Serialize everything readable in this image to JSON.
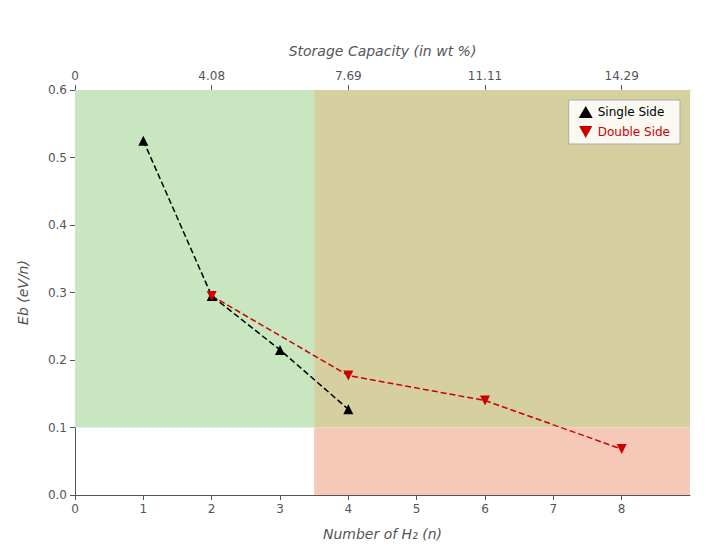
{
  "chart_data": {
    "type": "line",
    "xlabel": "Number of H₂ (n)",
    "ylabel": "Eb (eV/n)",
    "x2label": "Storage Capacity (in wt %)",
    "series": [
      {
        "name": "Single Side",
        "color": "black",
        "x": [
          1,
          2,
          3,
          4
        ],
        "values": [
          0.525,
          0.295,
          0.215,
          0.127
        ],
        "marker": "triangle-up",
        "line_style": "dashed"
      },
      {
        "name": "Double Side",
        "color": "#cc0000",
        "x": [
          2,
          4,
          6,
          8
        ],
        "values": [
          0.295,
          0.177,
          0.14,
          0.068
        ],
        "marker": "triangle-down",
        "line_style": "dashed"
      }
    ],
    "regions": [
      {
        "x": [
          0,
          3.5
        ],
        "y": [
          0.1,
          0.6
        ],
        "color": "#c8e6c0"
      },
      {
        "x": [
          3.5,
          9
        ],
        "y": [
          0.1,
          0.6
        ],
        "color": "#d6cfa0"
      },
      {
        "x": [
          3.5,
          9
        ],
        "y": [
          0,
          0.1
        ],
        "color": "#f5c8b8"
      }
    ],
    "xlim": [
      0,
      9
    ],
    "xticks": [
      0,
      1,
      2,
      3,
      4,
      5,
      6,
      7,
      8
    ],
    "x2lim": [
      0,
      9
    ],
    "x2ticks": [
      0,
      {
        "value": 2,
        "label": "4.08"
      },
      {
        "value": 4,
        "label": "7.69"
      },
      {
        "value": 6,
        "label": "11.11"
      },
      {
        "value": 8,
        "label": "14.29"
      }
    ],
    "ylim": [
      0,
      0.6
    ],
    "yticks": [
      {
        "value": 0,
        "label": "0.0"
      },
      0.1,
      0.2,
      0.3,
      0.4,
      0.5,
      0.6
    ],
    "grid": false,
    "legend": "upper right"
  }
}
